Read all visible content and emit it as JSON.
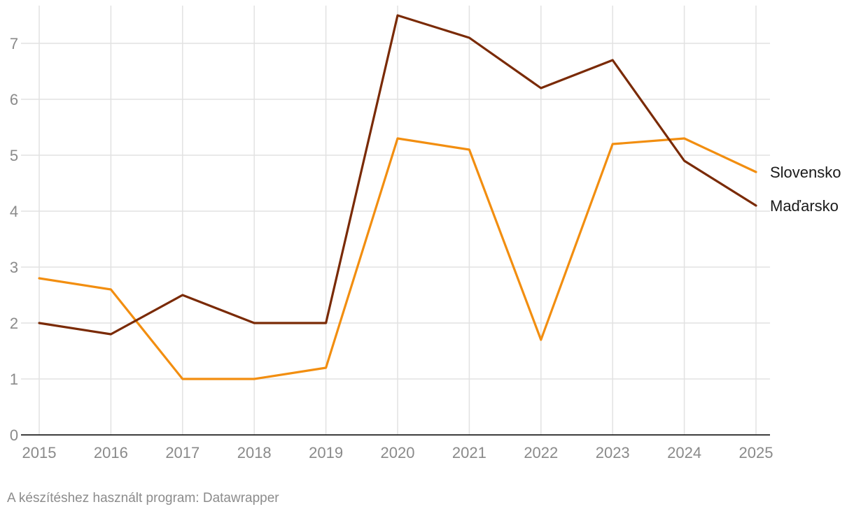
{
  "chart_data": {
    "type": "line",
    "title": "",
    "xlabel": "",
    "ylabel": "",
    "x": [
      2015,
      2016,
      2017,
      2018,
      2019,
      2020,
      2021,
      2022,
      2023,
      2024,
      2025
    ],
    "xticks": [
      "2015",
      "2016",
      "2017",
      "2018",
      "2019",
      "2020",
      "2021",
      "2022",
      "2023",
      "2024",
      "2025"
    ],
    "yticks": [
      "0",
      "1",
      "2",
      "3",
      "4",
      "5",
      "6",
      "7"
    ],
    "ylim": [
      0,
      7.5
    ],
    "grid": true,
    "legend": "direct labels at line ends",
    "series": [
      {
        "name": "Slovensko",
        "color": "#f28e10",
        "values": [
          2.8,
          2.6,
          1.0,
          1.0,
          1.2,
          5.3,
          5.1,
          1.7,
          5.2,
          5.3,
          4.7
        ]
      },
      {
        "name": "Maďarsko",
        "color": "#7a2a05",
        "values": [
          2.0,
          1.8,
          2.5,
          2.0,
          2.0,
          7.5,
          7.1,
          6.2,
          6.7,
          4.9,
          4.1
        ]
      }
    ]
  },
  "footer": {
    "credit": "A készítéshez használt program: Datawrapper"
  }
}
